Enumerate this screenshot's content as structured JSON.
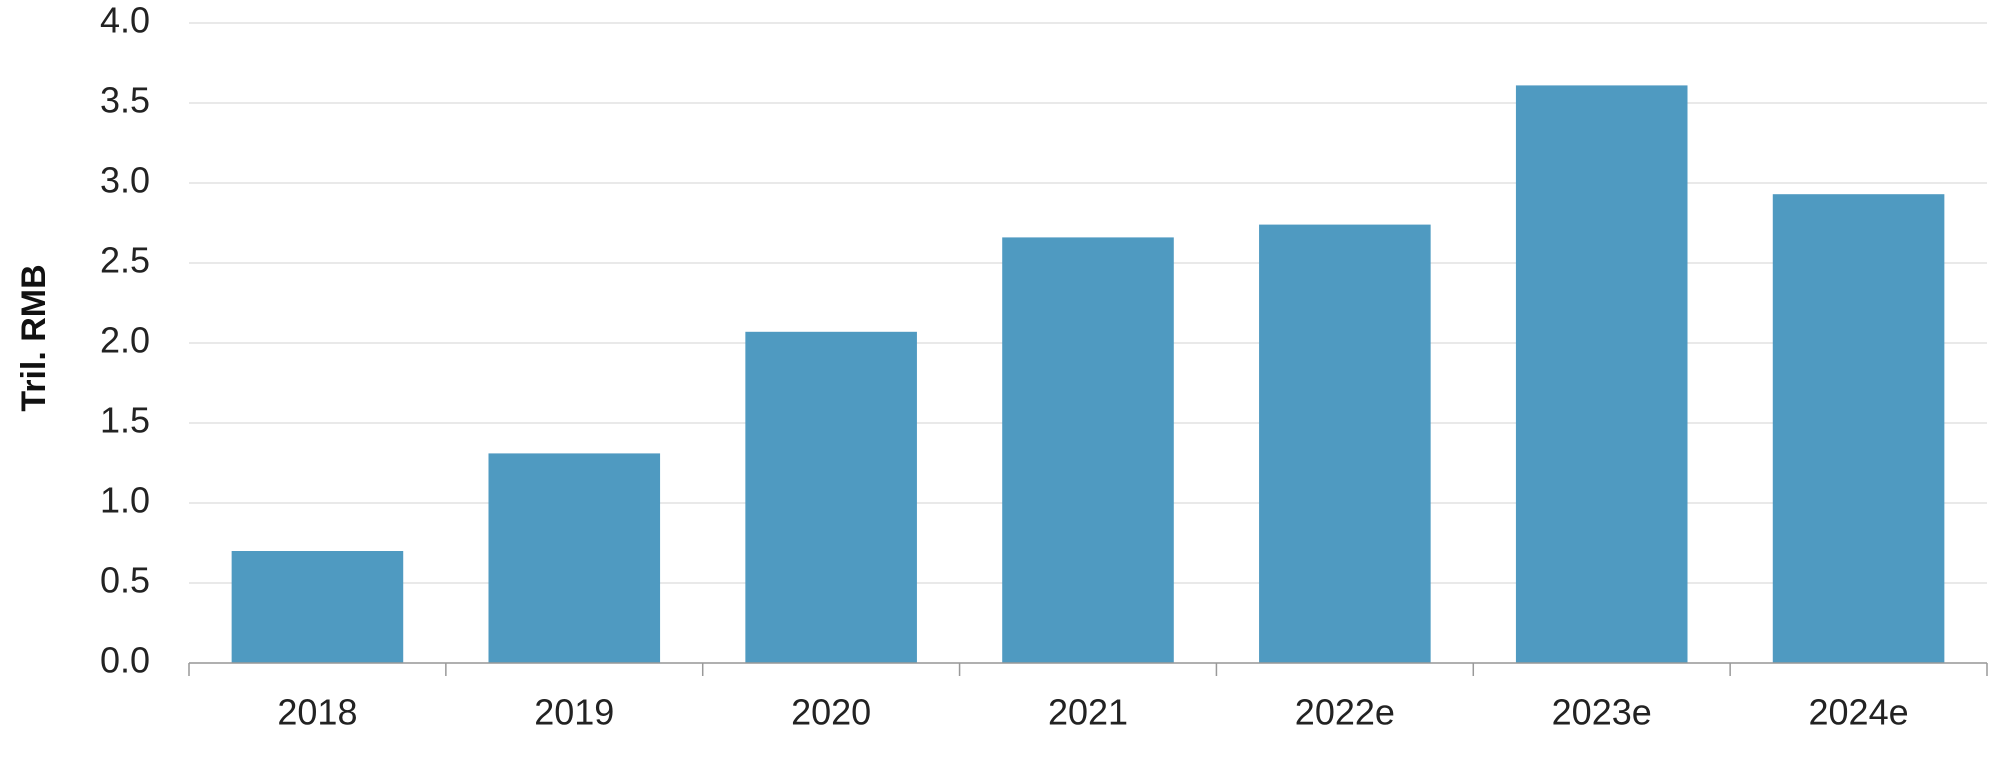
{
  "chart_data": {
    "type": "bar",
    "y_label": "Tril. RMB",
    "categories": [
      "2018",
      "2019",
      "2020",
      "2021",
      "2022e",
      "2023e",
      "2024e"
    ],
    "values": [
      0.7,
      1.31,
      2.07,
      2.66,
      2.74,
      3.61,
      2.93
    ],
    "color": "#4f9ac1",
    "ylim": [
      0,
      4
    ],
    "yticks": [
      {
        "value": 0,
        "label": "0.0"
      },
      {
        "value": 0.5,
        "label": "0.5"
      },
      {
        "value": 1,
        "label": "1.0"
      },
      {
        "value": 1.5,
        "label": "1.5"
      },
      {
        "value": 2,
        "label": "2.0"
      },
      {
        "value": 2.5,
        "label": "2.5"
      },
      {
        "value": 3,
        "label": "3.0"
      },
      {
        "value": 3.5,
        "label": "3.5"
      },
      {
        "value": 4,
        "label": "4.0"
      }
    ],
    "grid": true
  }
}
